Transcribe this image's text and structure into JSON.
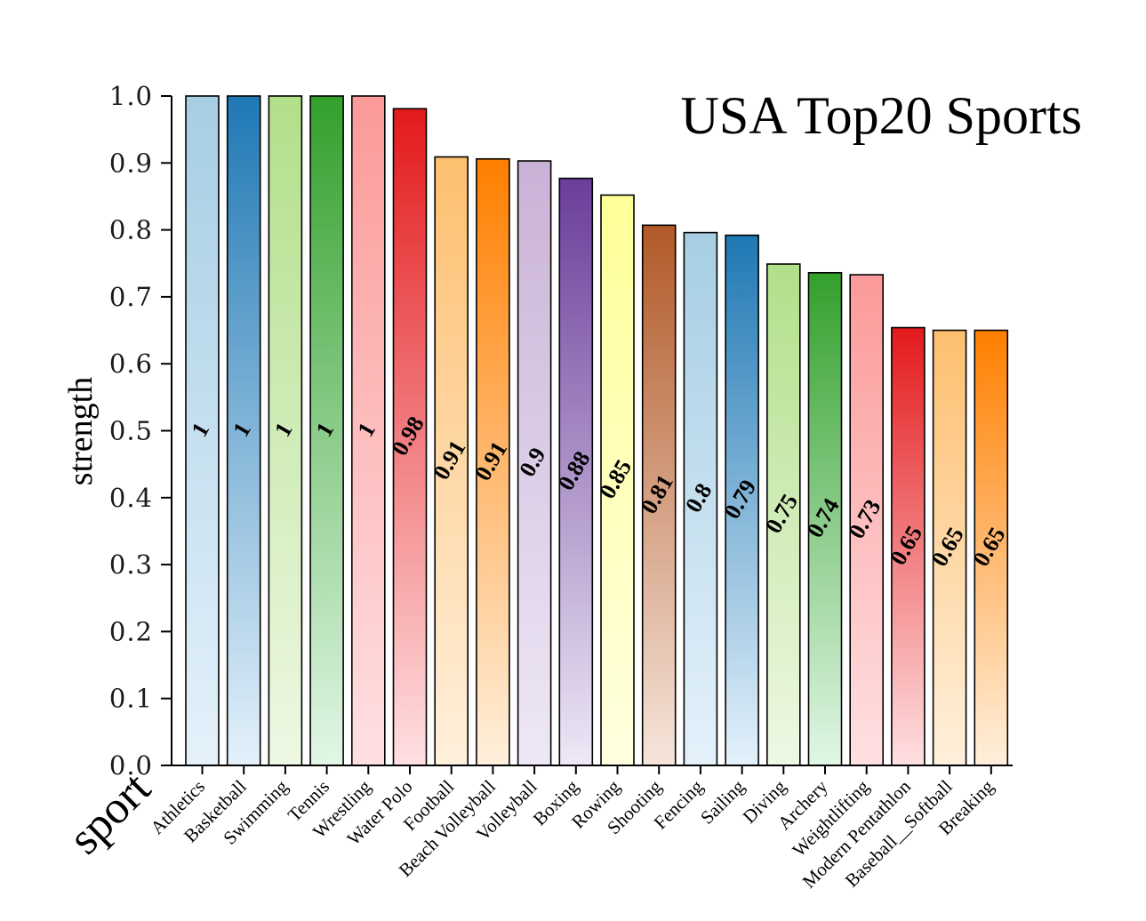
{
  "chart_data": {
    "type": "bar",
    "title": "USA Top20 Sports",
    "xlabel": "sport",
    "ylabel": "strength",
    "ylim": [
      0,
      1.0
    ],
    "yticks": [
      "0.0",
      "0.1",
      "0.2",
      "0.3",
      "0.4",
      "0.5",
      "0.6",
      "0.7",
      "0.8",
      "0.9",
      "1.0"
    ],
    "categories": [
      "Athletics",
      "Basketball",
      "Swimming",
      "Tennis",
      "Wrestling",
      "Water Polo",
      "Football",
      "Beach Volleyball",
      "Volleyball",
      "Boxing",
      "Rowing",
      "Shooting",
      "Fencing",
      "Sailing",
      "Diving",
      "Archery",
      "Weightlifting",
      "Modern Pentathlon",
      "Baseball__Softball",
      "Breaking"
    ],
    "values": [
      1.0,
      1.0,
      1.0,
      1.0,
      1.0,
      0.981,
      0.909,
      0.906,
      0.903,
      0.877,
      0.852,
      0.807,
      0.796,
      0.792,
      0.749,
      0.736,
      0.733,
      0.654,
      0.65,
      0.65
    ],
    "data_labels": [
      "1",
      "1",
      "1",
      "1",
      "1",
      "0.98",
      "0.91",
      "0.91",
      "0.9",
      "0.88",
      "0.85",
      "0.81",
      "0.8",
      "0.79",
      "0.75",
      "0.74",
      "0.73",
      "0.65",
      "0.65",
      "0.65"
    ],
    "colors": [
      "#a6cee3",
      "#1f78b4",
      "#b2df8a",
      "#33a02c",
      "#fb9a99",
      "#e31a1c",
      "#fdbf6f",
      "#ff7f00",
      "#cab2d6",
      "#6a3d9a",
      "#ffff99",
      "#b15928",
      "#a6cee3",
      "#1f78b4",
      "#b2df8a",
      "#33a02c",
      "#fb9a99",
      "#e31a1c",
      "#fdbf6f",
      "#ff7f00"
    ],
    "bottom_colors": [
      "#e4f1fb",
      "#e4f1fb",
      "#eef8e4",
      "#e2f7e6",
      "#ffe0e2",
      "#ffe0e2",
      "#fff0dc",
      "#fff0dc",
      "#eee8f6",
      "#eee8f6",
      "#ffffdf",
      "#f6e5db",
      "#e4f1fb",
      "#e4f1fb",
      "#eef8e4",
      "#e2f7e6",
      "#ffe0e2",
      "#ffe0e2",
      "#fff0dc",
      "#fff0dc"
    ],
    "grid": false,
    "legend": "none"
  }
}
